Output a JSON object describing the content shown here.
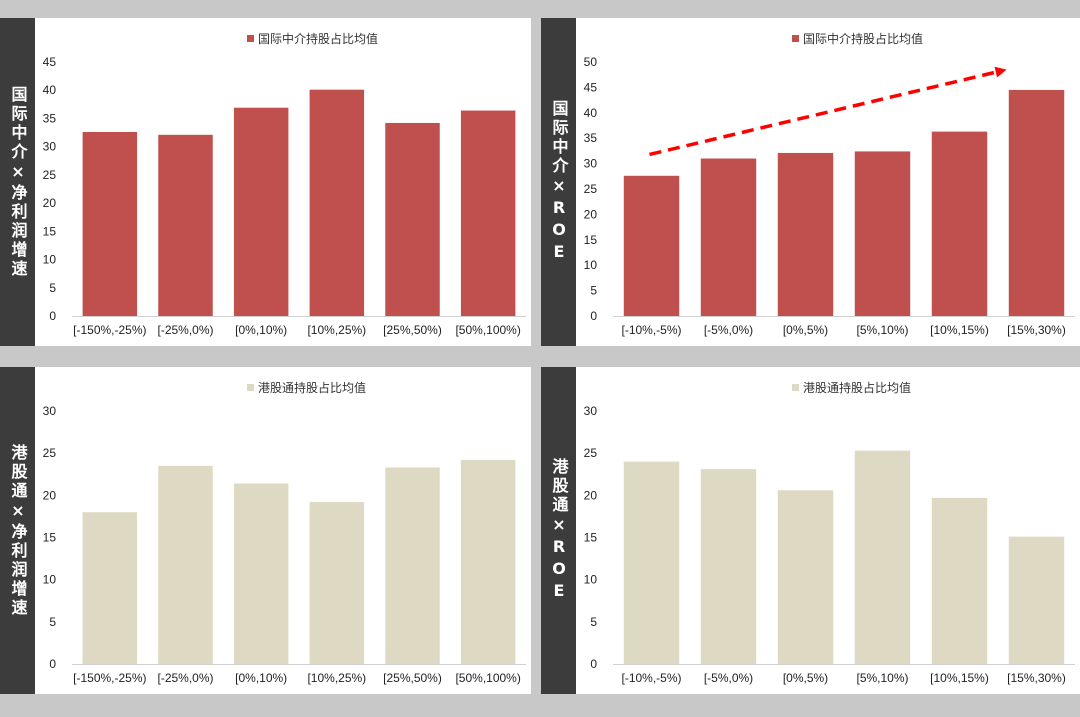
{
  "colors": {
    "red": "#c0504d",
    "beige": "#ddd9c3",
    "sidebar": "#3c3c3c",
    "arrow": "#ff0000"
  },
  "panels": [
    {
      "side_label": "国际中介×净利润增速"
    },
    {
      "side_label": "国际中介×ROE"
    },
    {
      "side_label": "港股通×净利润增速"
    },
    {
      "side_label": "港股通×ROE"
    }
  ],
  "chart_data": [
    {
      "type": "bar",
      "legend": "国际中介持股占比均值",
      "categories": [
        "[-150%,-25%)",
        "[-25%,0%)",
        "[0%,10%)",
        "[10%,25%)",
        "[25%,50%)",
        "[50%,100%)"
      ],
      "values": [
        32.6,
        32.1,
        36.9,
        40.1,
        34.2,
        36.4
      ],
      "ylim": [
        0,
        45
      ],
      "yticks": [
        0,
        5,
        10,
        15,
        20,
        25,
        30,
        35,
        40,
        45
      ],
      "color": "#c0504d"
    },
    {
      "type": "bar",
      "legend": "国际中介持股占比均值",
      "categories": [
        "[-10%,-5%)",
        "[-5%,0%)",
        "[0%,5%)",
        "[5%,10%)",
        "[10%,15%)",
        "[15%,30%)"
      ],
      "values": [
        27.6,
        31.0,
        32.1,
        32.4,
        36.3,
        44.5
      ],
      "ylim": [
        0,
        50
      ],
      "yticks": [
        0,
        5,
        10,
        15,
        20,
        25,
        30,
        35,
        40,
        45,
        50
      ],
      "color": "#c0504d",
      "annotation": "trend-arrow"
    },
    {
      "type": "bar",
      "legend": "港股通持股占比均值",
      "categories": [
        "[-150%,-25%)",
        "[-25%,0%)",
        "[0%,10%)",
        "[10%,25%)",
        "[25%,50%)",
        "[50%,100%)"
      ],
      "values": [
        18.0,
        23.5,
        21.4,
        19.2,
        23.3,
        24.2
      ],
      "ylim": [
        0,
        30
      ],
      "yticks": [
        0,
        5,
        10,
        15,
        20,
        25,
        30
      ],
      "color": "#ddd9c3"
    },
    {
      "type": "bar",
      "legend": "港股通持股占比均值",
      "categories": [
        "[-10%,-5%)",
        "[-5%,0%)",
        "[0%,5%)",
        "[5%,10%)",
        "[10%,15%)",
        "[15%,30%)"
      ],
      "values": [
        24.0,
        23.1,
        20.6,
        25.3,
        19.7,
        15.1
      ],
      "ylim": [
        0,
        30
      ],
      "yticks": [
        0,
        5,
        10,
        15,
        20,
        25,
        30
      ],
      "color": "#ddd9c3"
    }
  ]
}
